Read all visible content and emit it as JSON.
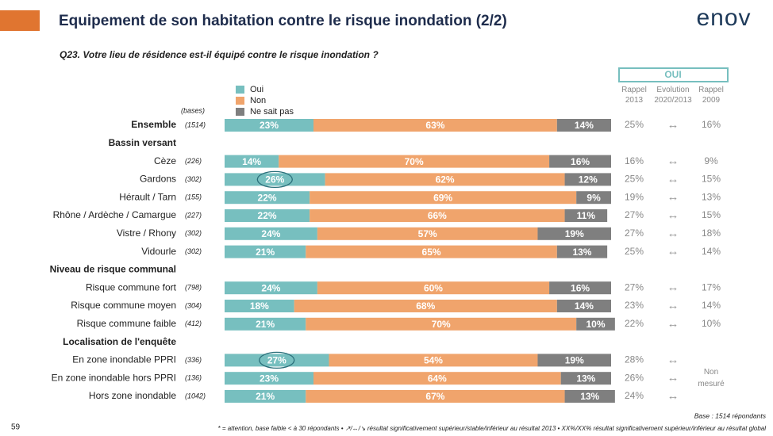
{
  "header": {
    "title": "Equipement de son habitation contre le risque inondation (2/2)",
    "logo": "enov",
    "page_number": "59"
  },
  "question": "Q23. Votre lieu de résidence est-il équipé contre le risque inondation ?",
  "chart_data": {
    "type": "bar",
    "orientation": "horizontal",
    "stacked": true,
    "categories": [
      "Ensemble",
      "Cèze",
      "Gardons",
      "Hérault / Tarn",
      "Rhône / Ardèche / Camargue",
      "Vistre / Rhony",
      "Vidourle",
      "Risque commune fort",
      "Risque commune moyen",
      "Risque commune faible",
      "En zone inondable PPRI",
      "En zone inondable hors PPRI",
      "Hors zone inondable"
    ],
    "group_titles": [
      "Bassin versant",
      "Niveau de risque communal",
      "Localisation de l'enquête"
    ],
    "bases_title": "(bases)",
    "bases": [
      "(1514)",
      "(226)",
      "(302)",
      "(155)",
      "(227)",
      "(302)",
      "(302)",
      "(798)",
      "(304)",
      "(412)",
      "(336)",
      "(136)",
      "(1042)"
    ],
    "xlim": [
      0,
      100
    ],
    "series": [
      {
        "name": "Oui",
        "color": "#77bfbf",
        "values": [
          23,
          14,
          26,
          22,
          22,
          24,
          21,
          24,
          18,
          21,
          27,
          23,
          21
        ],
        "value_labels": [
          "23%",
          "14%",
          "26%",
          "22%",
          "22%",
          "24%",
          "21%",
          "24%",
          "18%",
          "21%",
          "27%",
          "23%",
          "21%"
        ]
      },
      {
        "name": "Non",
        "color": "#f0a46c",
        "values": [
          63,
          70,
          62,
          69,
          66,
          57,
          65,
          60,
          68,
          70,
          54,
          64,
          67
        ],
        "value_labels": [
          "63%",
          "70%",
          "62%",
          "69%",
          "66%",
          "57%",
          "65%",
          "60%",
          "68%",
          "70%",
          "54%",
          "64%",
          "67%"
        ]
      },
      {
        "name": "Ne sait pas",
        "color": "#7f7f7f",
        "values": [
          14,
          16,
          12,
          9,
          11,
          19,
          13,
          16,
          14,
          10,
          19,
          13,
          13
        ],
        "value_labels": [
          "14%",
          "16%",
          "12%",
          "9%",
          "11%",
          "19%",
          "13%",
          "16%",
          "14%",
          "10%",
          "19%",
          "13%",
          "13%"
        ]
      }
    ],
    "table": {
      "title": "OUI",
      "columns": [
        "Rappel 2013",
        "Evolution 2020/2013",
        "Rappel 2009"
      ],
      "rappel_2013": [
        "25%",
        "16%",
        "25%",
        "19%",
        "27%",
        "27%",
        "25%",
        "27%",
        "23%",
        "22%",
        "28%",
        "26%",
        "24%"
      ],
      "rappel_2009": [
        "16%",
        "9%",
        "15%",
        "13%",
        "15%",
        "18%",
        "14%",
        "17%",
        "14%",
        "10%",
        null,
        null,
        null
      ],
      "rappel_2009_note": "Non mesuré"
    }
  },
  "footer": {
    "base": "Base : 1514 répondants",
    "note": "* = attention, base faible < à 30 répondants • ↗/↔/↘ résultat significativement supérieur/stable/inférieur au résultat 2013 • XX%/XX% résultat significativement supérieur/inférieur au résultat global"
  }
}
